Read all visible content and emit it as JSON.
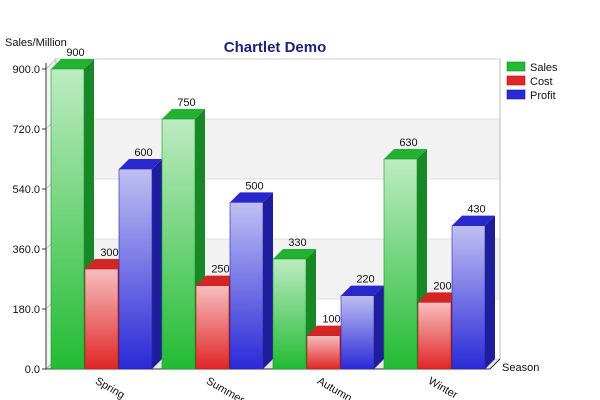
{
  "chart_data": {
    "type": "bar",
    "title": "Chartlet Demo",
    "ylabel": "Sales/Million",
    "xlabel": "Season",
    "categories": [
      "Spring",
      "Summer",
      "Autumn",
      "Winter"
    ],
    "ylim": [
      0,
      900
    ],
    "yticks": [
      "0.0",
      "180.0",
      "360.0",
      "540.0",
      "720.0",
      "900.0"
    ],
    "ytick_values": [
      0,
      180,
      360,
      540,
      720,
      900
    ],
    "series": [
      {
        "name": "Sales",
        "values": [
          900,
          750,
          330,
          630
        ],
        "color": "#22bb33"
      },
      {
        "name": "Cost",
        "values": [
          300,
          250,
          100,
          200
        ],
        "color": "#e02626"
      },
      {
        "name": "Profit",
        "values": [
          600,
          500,
          220,
          430
        ],
        "color": "#2a2ad8"
      }
    ],
    "legend_position": "right",
    "grid": true,
    "style": "3d"
  }
}
